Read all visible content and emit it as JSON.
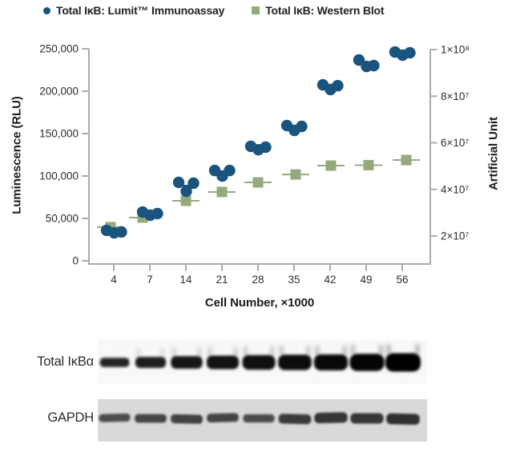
{
  "legend": [
    {
      "label": "Total IκB: Lumit™ Immunoassay",
      "marker": "circle",
      "color": "#1a537d"
    },
    {
      "label": "Total IκB: Western Blot",
      "marker": "square",
      "color": "#95a97c"
    }
  ],
  "chart_data": {
    "type": "scatter",
    "x_categories": [
      "4",
      "7",
      "14",
      "21",
      "28",
      "35",
      "42",
      "49",
      "56"
    ],
    "xlabel": "Cell Number, ×1000",
    "left_axis": {
      "label": "Luminescence (RLU)",
      "tick_labels": [
        "0",
        "50,000",
        "100,000",
        "150,000",
        "200,000",
        "250,000"
      ],
      "tick_values": [
        0,
        50000,
        100000,
        150000,
        200000,
        250000
      ],
      "range": [
        0,
        250000
      ]
    },
    "right_axis": {
      "label": "Artificial Unit",
      "tick_labels": [
        "2×10⁷",
        "4×10⁷",
        "6×10⁷",
        "8×10⁷",
        "1×10⁸"
      ],
      "tick_values": [
        20000000,
        40000000,
        60000000,
        80000000,
        100000000
      ]
    },
    "series": [
      {
        "name": "Total IκB: Lumit™ Immunoassay",
        "axis": "left",
        "marker": "circle",
        "color": "#1a537d",
        "replicates": [
          [
            35900,
            33000,
            34000
          ],
          [
            57500,
            53800,
            55700
          ],
          [
            92500,
            82000,
            91500
          ],
          [
            106500,
            100000,
            106500
          ],
          [
            135000,
            131000,
            134000
          ],
          [
            159500,
            153800,
            158500
          ],
          [
            207500,
            202000,
            206500
          ],
          [
            236800,
            229200,
            230200
          ],
          [
            246200,
            242500,
            245300
          ]
        ]
      },
      {
        "name": "Total IκB: Western Blot",
        "axis": "right",
        "marker": "square",
        "color": "#95a97c",
        "values": [
          23800000,
          27900000,
          35100000,
          38900000,
          43000000,
          46400000,
          50200000,
          50400000,
          52600000
        ]
      }
    ],
    "grid": false,
    "legend_position": "top"
  },
  "western_blots": {
    "panels": [
      {
        "label": "Total IκBα",
        "lanes": 9,
        "band_intensities": [
          0.28,
          0.42,
          0.55,
          0.62,
          0.7,
          0.76,
          0.82,
          0.9,
          1.0
        ]
      },
      {
        "label": "GAPDH",
        "lanes": 9,
        "band_intensities": [
          0.5,
          0.6,
          0.66,
          0.62,
          0.52,
          0.78,
          0.88,
          0.86,
          0.95
        ]
      }
    ]
  }
}
